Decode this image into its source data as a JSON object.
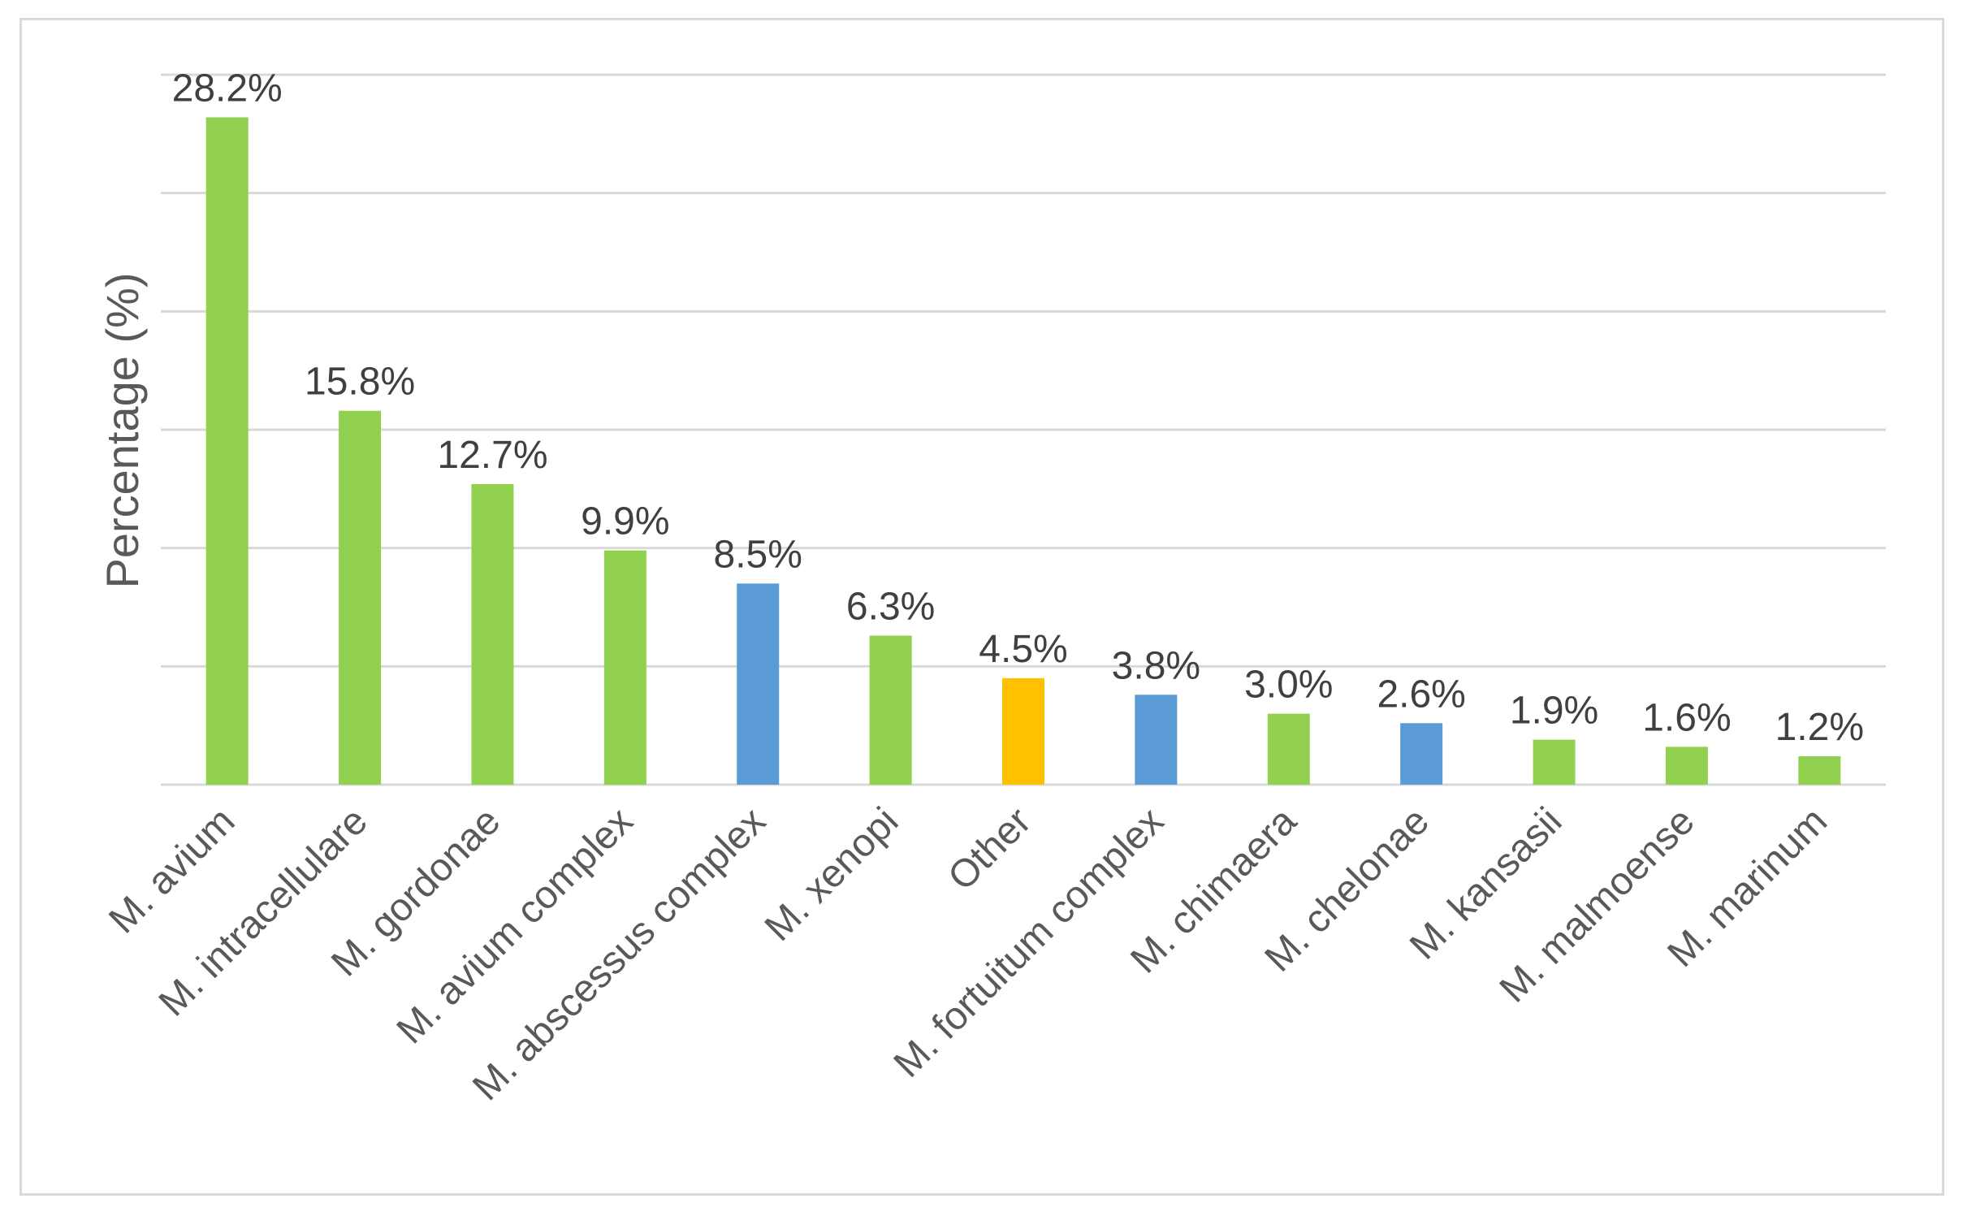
{
  "chart_data": {
    "type": "bar",
    "title": "",
    "xlabel": "",
    "ylabel": "Percentage (%)",
    "ylim": [
      0,
      30
    ],
    "grid": true,
    "categories": [
      "M. avium",
      "M. intracellulare",
      "M. gordonae",
      "M. avium complex",
      "M. abscessus complex",
      "M. xenopi",
      "Other",
      "M. fortuitum complex",
      "M. chimaera",
      "M. chelonae",
      "M. kansasii",
      "M. malmoense",
      "M. marinum"
    ],
    "values": [
      28.2,
      15.8,
      12.7,
      9.9,
      8.5,
      6.3,
      4.5,
      3.8,
      3.0,
      2.6,
      1.9,
      1.6,
      1.2
    ],
    "data_labels": [
      "28.2%",
      "15.8%",
      "12.7%",
      "9.9%",
      "8.5%",
      "6.3%",
      "4.5%",
      "3.8%",
      "3.0%",
      "2.6%",
      "1.9%",
      "1.6%",
      "1.2%"
    ],
    "bar_colors": [
      "#92d050",
      "#92d050",
      "#92d050",
      "#92d050",
      "#5b9bd5",
      "#92d050",
      "#ffc000",
      "#5b9bd5",
      "#92d050",
      "#5b9bd5",
      "#92d050",
      "#92d050",
      "#92d050"
    ]
  }
}
